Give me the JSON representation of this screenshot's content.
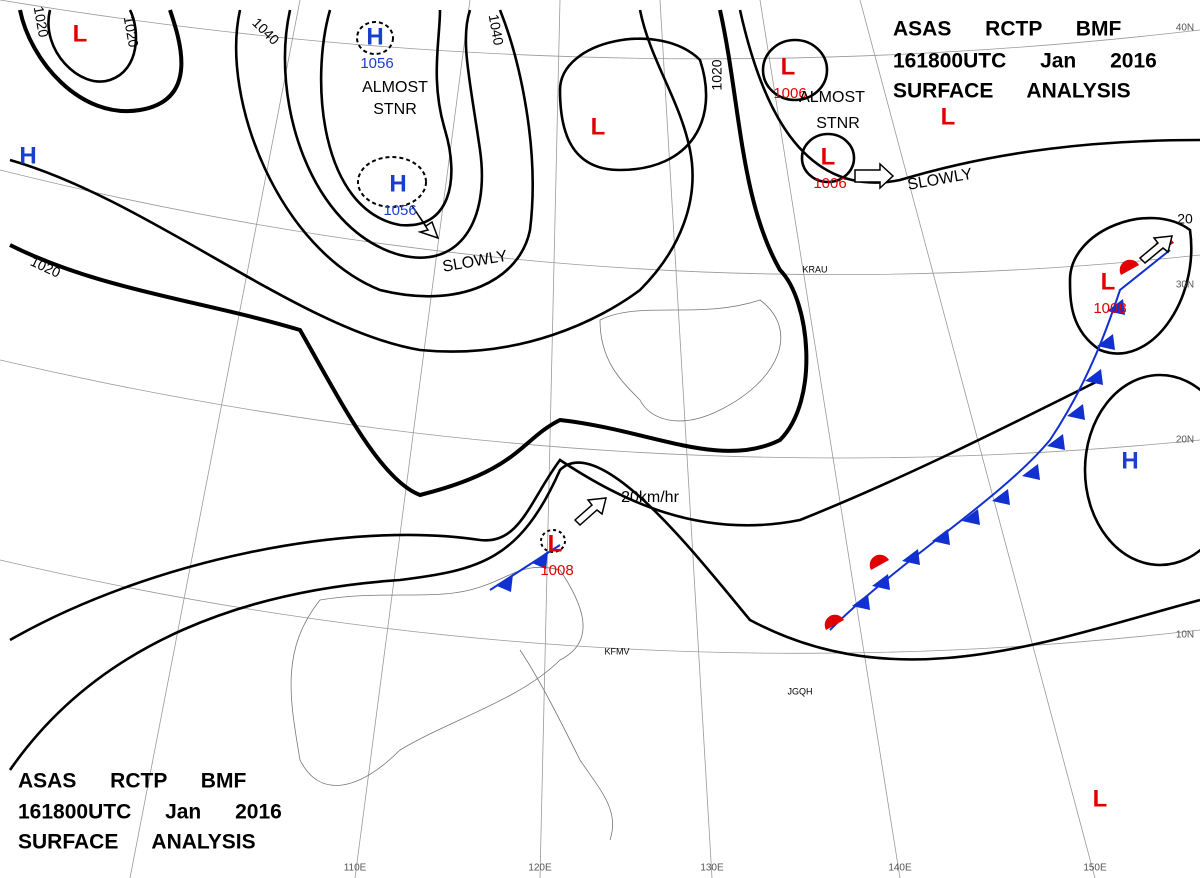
{
  "title_blocks": [
    {
      "lines": [
        "ASAS RCTP BMF",
        "161800UTC Jan 2016",
        "SURFACE ANALYSIS"
      ]
    },
    {
      "lines": [
        "ASAS RCTP BMF",
        "161800UTC Jan 2016",
        "SURFACE ANALYSIS"
      ]
    }
  ],
  "pressure_centers": [
    {
      "type": "H",
      "value": 1056
    },
    {
      "type": "H",
      "value": 1056
    },
    {
      "type": "H"
    },
    {
      "type": "L"
    },
    {
      "type": "L"
    },
    {
      "type": "L",
      "value": 1006
    },
    {
      "type": "L"
    },
    {
      "type": "L",
      "value": 1006
    },
    {
      "type": "L",
      "value": 1008
    },
    {
      "type": "L",
      "value": 1008
    },
    {
      "type": "H"
    },
    {
      "type": "L"
    }
  ],
  "isobar_labels": [
    1020,
    1020,
    1040,
    1040,
    1020,
    1020,
    20
  ],
  "annotations": [
    "ALMOST",
    "STNR",
    "SLOWLY",
    "ALMOST",
    "STNR",
    "SLOWLY",
    "20km/hr"
  ],
  "lat_labels": [
    "10N",
    "20N",
    "30N",
    "40N"
  ],
  "lon_labels": [
    "110E",
    "120E",
    "130E",
    "140E",
    "150E"
  ],
  "station_ids": [
    "KRAU",
    "KFMV",
    "JGQH"
  ]
}
